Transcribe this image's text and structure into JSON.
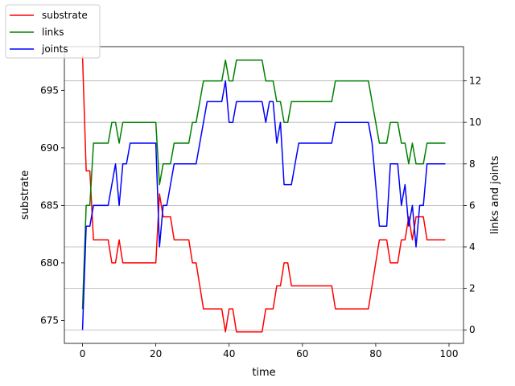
{
  "chart_data": {
    "type": "line",
    "xlabel": "time",
    "ylabel_left": "substrate",
    "ylabel_right": "links and joints",
    "xlim": [
      -4.95,
      103.95
    ],
    "ylim_left": [
      673,
      698.8
    ],
    "ylim_right": [
      -0.65,
      13.65
    ],
    "xticks": [
      0,
      20,
      40,
      60,
      80,
      100
    ],
    "yticks_left": [
      675,
      680,
      685,
      690,
      695
    ],
    "yticks_right": [
      0,
      2,
      4,
      6,
      8,
      10,
      12
    ],
    "grid": "horizontal lines at right-axis ticks",
    "legend": {
      "placement": "top-left",
      "entries": [
        "substrate",
        "links",
        "joints"
      ]
    },
    "series": [
      {
        "name": "substrate",
        "axis": "left",
        "color": "#ff0000",
        "x": [
          0,
          1,
          2,
          3,
          4,
          5,
          6,
          7,
          8,
          9,
          10,
          11,
          12,
          13,
          14,
          15,
          16,
          17,
          18,
          19,
          20,
          21,
          22,
          23,
          24,
          25,
          26,
          27,
          28,
          29,
          30,
          31,
          32,
          33,
          34,
          35,
          36,
          37,
          38,
          39,
          40,
          41,
          42,
          43,
          44,
          45,
          46,
          47,
          48,
          49,
          50,
          51,
          52,
          53,
          54,
          55,
          56,
          57,
          58,
          59,
          60,
          61,
          62,
          63,
          64,
          65,
          66,
          67,
          68,
          69,
          70,
          71,
          72,
          73,
          74,
          75,
          76,
          77,
          78,
          79,
          80,
          81,
          82,
          83,
          84,
          85,
          86,
          87,
          88,
          89,
          90,
          91,
          92,
          93,
          94,
          95,
          96,
          97,
          98,
          99
        ],
        "values": [
          698,
          688,
          688,
          682,
          682,
          682,
          682,
          682,
          680,
          680,
          682,
          680,
          680,
          680,
          680,
          680,
          680,
          680,
          680,
          680,
          680,
          686,
          684,
          684,
          684,
          682,
          682,
          682,
          682,
          682,
          680,
          680,
          678,
          676,
          676,
          676,
          676,
          676,
          676,
          674,
          676,
          676,
          674,
          674,
          674,
          674,
          674,
          674,
          674,
          674,
          676,
          676,
          676,
          678,
          678,
          680,
          680,
          678,
          678,
          678,
          678,
          678,
          678,
          678,
          678,
          678,
          678,
          678,
          678,
          676,
          676,
          676,
          676,
          676,
          676,
          676,
          676,
          676,
          676,
          678,
          680,
          682,
          682,
          682,
          680,
          680,
          680,
          682,
          682,
          684,
          682,
          684,
          684,
          684,
          682,
          682,
          682,
          682,
          682,
          682
        ]
      },
      {
        "name": "links",
        "axis": "right",
        "color": "#008000",
        "x": [
          0,
          1,
          2,
          3,
          4,
          5,
          6,
          7,
          8,
          9,
          10,
          11,
          12,
          13,
          14,
          15,
          16,
          17,
          18,
          19,
          20,
          21,
          22,
          23,
          24,
          25,
          26,
          27,
          28,
          29,
          30,
          31,
          32,
          33,
          34,
          35,
          36,
          37,
          38,
          39,
          40,
          41,
          42,
          43,
          44,
          45,
          46,
          47,
          48,
          49,
          50,
          51,
          52,
          53,
          54,
          55,
          56,
          57,
          58,
          59,
          60,
          61,
          62,
          63,
          64,
          65,
          66,
          67,
          68,
          69,
          70,
          71,
          72,
          73,
          74,
          75,
          76,
          77,
          78,
          79,
          80,
          81,
          82,
          83,
          84,
          85,
          86,
          87,
          88,
          89,
          90,
          91,
          92,
          93,
          94,
          95,
          96,
          97,
          98,
          99
        ],
        "values": [
          1,
          6,
          6,
          9,
          9,
          9,
          9,
          9,
          10,
          10,
          9,
          10,
          10,
          10,
          10,
          10,
          10,
          10,
          10,
          10,
          10,
          7,
          8,
          8,
          8,
          9,
          9,
          9,
          9,
          9,
          10,
          10,
          11,
          12,
          12,
          12,
          12,
          12,
          12,
          13,
          12,
          12,
          13,
          13,
          13,
          13,
          13,
          13,
          13,
          13,
          12,
          12,
          12,
          11,
          11,
          10,
          10,
          11,
          11,
          11,
          11,
          11,
          11,
          11,
          11,
          11,
          11,
          11,
          11,
          12,
          12,
          12,
          12,
          12,
          12,
          12,
          12,
          12,
          12,
          11,
          10,
          9,
          9,
          9,
          10,
          10,
          10,
          9,
          9,
          8,
          9,
          8,
          8,
          8,
          9,
          9,
          9,
          9,
          9,
          9
        ]
      },
      {
        "name": "joints",
        "axis": "right",
        "color": "#0000ff",
        "x": [
          0,
          1,
          2,
          3,
          4,
          5,
          6,
          7,
          8,
          9,
          10,
          11,
          12,
          13,
          14,
          15,
          16,
          17,
          18,
          19,
          20,
          21,
          22,
          23,
          24,
          25,
          26,
          27,
          28,
          29,
          30,
          31,
          32,
          33,
          34,
          35,
          36,
          37,
          38,
          39,
          40,
          41,
          42,
          43,
          44,
          45,
          46,
          47,
          48,
          49,
          50,
          51,
          52,
          53,
          54,
          55,
          56,
          57,
          58,
          59,
          60,
          61,
          62,
          63,
          64,
          65,
          66,
          67,
          68,
          69,
          70,
          71,
          72,
          73,
          74,
          75,
          76,
          77,
          78,
          79,
          80,
          81,
          82,
          83,
          84,
          85,
          86,
          87,
          88,
          89,
          90,
          91,
          92,
          93,
          94,
          95,
          96,
          97,
          98,
          99
        ],
        "values": [
          0,
          5,
          5,
          6,
          6,
          6,
          6,
          6,
          7,
          8,
          6,
          8,
          8,
          9,
          9,
          9,
          9,
          9,
          9,
          9,
          9,
          4,
          6,
          6,
          7,
          8,
          8,
          8,
          8,
          8,
          8,
          8,
          9,
          10,
          11,
          11,
          11,
          11,
          11,
          12,
          10,
          10,
          11,
          11,
          11,
          11,
          11,
          11,
          11,
          11,
          10,
          11,
          11,
          9,
          10,
          7,
          7,
          7,
          8,
          9,
          9,
          9,
          9,
          9,
          9,
          9,
          9,
          9,
          9,
          10,
          10,
          10,
          10,
          10,
          10,
          10,
          10,
          10,
          10,
          9,
          7,
          5,
          5,
          5,
          8,
          8,
          8,
          6,
          7,
          5,
          6,
          4,
          6,
          6,
          8,
          8,
          8,
          8,
          8,
          8
        ]
      }
    ]
  }
}
